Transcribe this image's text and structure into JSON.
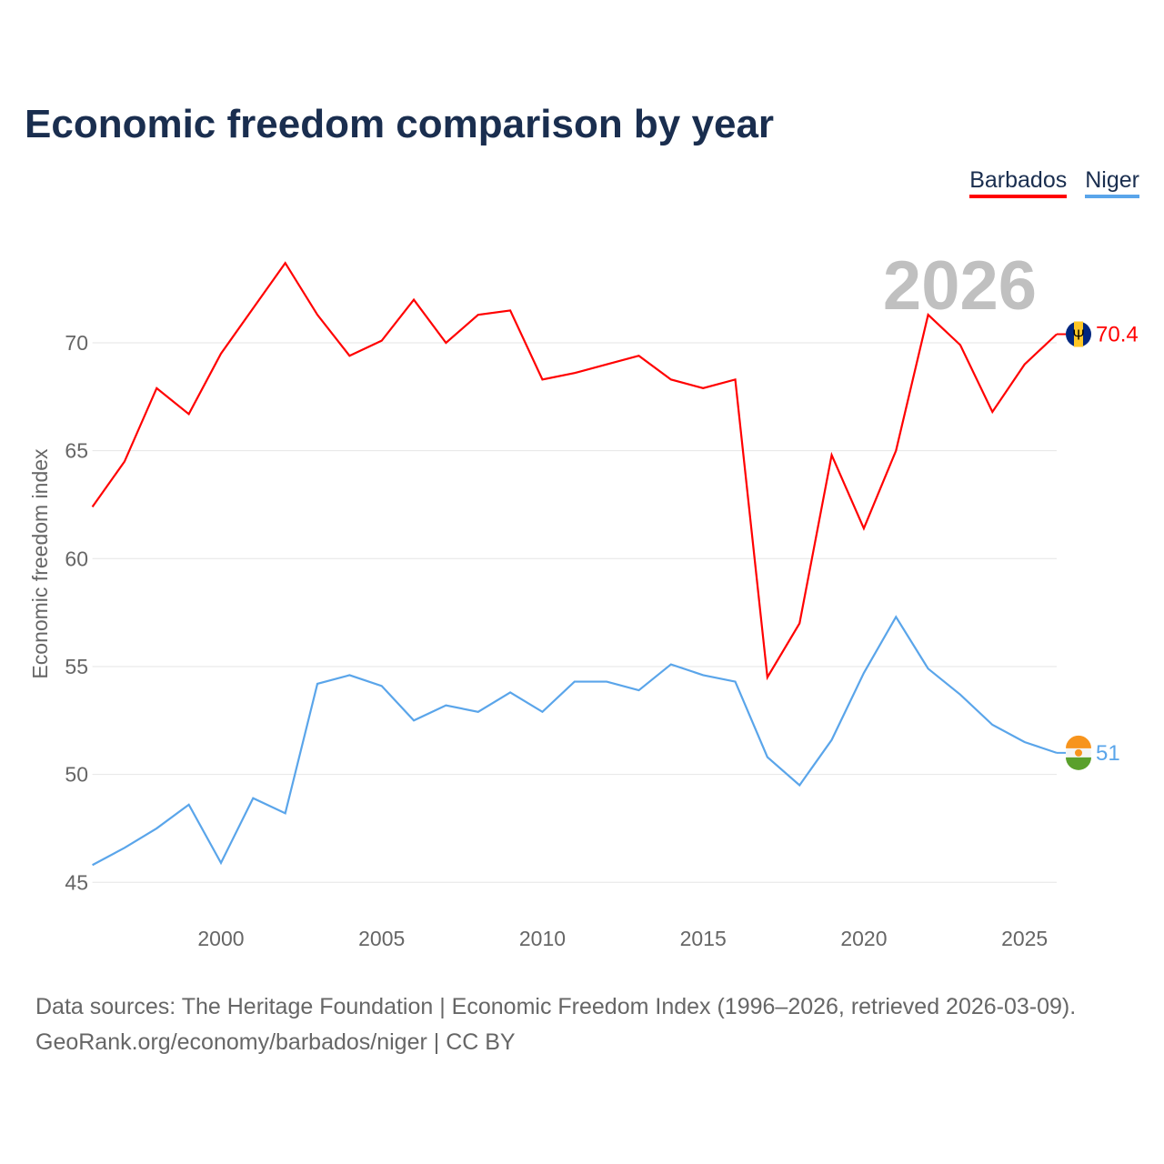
{
  "chart_data": {
    "type": "line",
    "title": "Economic freedom comparison by year",
    "ylabel": "Economic freedom index",
    "xlabel": "",
    "watermark_year": "2026",
    "ylim": [
      43.5,
      77
    ],
    "xlim": [
      1996,
      2026
    ],
    "yticks": [
      45,
      50,
      55,
      60,
      65,
      70
    ],
    "xticks": [
      2000,
      2005,
      2010,
      2015,
      2020,
      2025
    ],
    "grid": true,
    "legend": "top-right",
    "x": [
      1996,
      1997,
      1998,
      1999,
      2000,
      2001,
      2002,
      2003,
      2004,
      2005,
      2006,
      2007,
      2008,
      2009,
      2010,
      2011,
      2012,
      2013,
      2014,
      2015,
      2016,
      2017,
      2018,
      2019,
      2020,
      2021,
      2022,
      2023,
      2024,
      2025,
      2026
    ],
    "series": [
      {
        "name": "Barbados",
        "color": "#ff0000",
        "end_label": "70.4",
        "values": [
          62.4,
          64.5,
          67.9,
          66.7,
          69.5,
          71.6,
          73.7,
          71.3,
          69.4,
          70.1,
          72.0,
          70.0,
          71.3,
          71.5,
          68.3,
          68.6,
          69.0,
          69.4,
          68.3,
          67.9,
          68.3,
          54.5,
          57.0,
          64.8,
          61.4,
          65.0,
          71.3,
          69.9,
          66.8,
          69.0,
          70.4
        ]
      },
      {
        "name": "Niger",
        "color": "#5aa5ea",
        "end_label": "51",
        "values": [
          45.8,
          46.6,
          47.5,
          48.6,
          45.9,
          48.9,
          48.2,
          54.2,
          54.6,
          54.1,
          52.5,
          53.2,
          52.9,
          53.8,
          52.9,
          54.3,
          54.3,
          53.9,
          55.1,
          54.6,
          54.3,
          50.8,
          49.5,
          51.6,
          54.7,
          57.3,
          54.9,
          53.7,
          52.3,
          51.5,
          51.0
        ]
      }
    ]
  },
  "source_line1": "Data sources: The Heritage Foundation | Economic Freedom Index (1996–2026, retrieved 2026-03-09).",
  "source_line2": "GeoRank.org/economy/barbados/niger | CC BY"
}
